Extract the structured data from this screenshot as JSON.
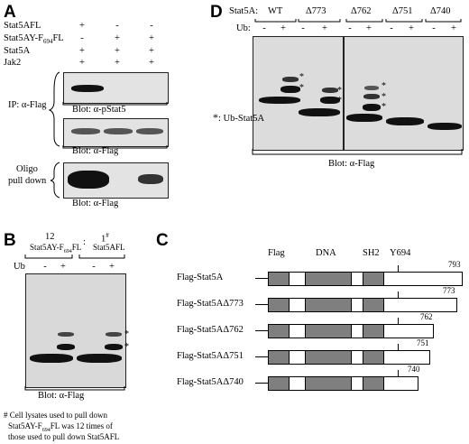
{
  "panelA": {
    "letter": "A",
    "rows": [
      {
        "label": "Stat5AFL",
        "marks": [
          "+",
          "-",
          "-"
        ]
      },
      {
        "label": "Stat5AY-F694FL",
        "marks": [
          "-",
          "+",
          "+"
        ]
      },
      {
        "label": "Stat5A",
        "marks": [
          "+",
          "+",
          "+"
        ]
      },
      {
        "label": "Jak2",
        "marks": [
          "+",
          "+",
          "+"
        ]
      }
    ],
    "ip_label": "IP: α-Flag",
    "blot1_caption": "Blot:  α-pStat5",
    "blot2_caption": "Blot:  α-Flag",
    "oligo_label_1": "Oligo",
    "oligo_label_2": "pull down",
    "blot3_caption": "Blot:  α-Flag"
  },
  "panelB": {
    "letter": "B",
    "group1_number": "12",
    "separator": ":",
    "group2_number": "1",
    "group2_sup": "#",
    "group1_name": "Stat5AY-F694FL",
    "group2_name": "Stat5AFL",
    "ub_label": "Ub",
    "ub_marks": [
      "-",
      "+",
      "-",
      "+"
    ],
    "blot_caption": "Blot:  α-Flag",
    "footnote_1": "# Cell lysates used to pull down",
    "footnote_2": "Stat5AY-F694FL was 12 times of",
    "footnote_3": "those used to pull down Stat5AFL"
  },
  "panelC": {
    "letter": "C",
    "domain_flag": "Flag",
    "domain_dna": "DNA",
    "domain_sh2": "SH2",
    "site_label": "Y694",
    "constructs": [
      {
        "name": "Flag-Stat5A",
        "length": "793"
      },
      {
        "name": "Flag-Stat5AΔ773",
        "length": "773"
      },
      {
        "name": "Flag-Stat5AΔ762",
        "length": "762"
      },
      {
        "name": "Flag-Stat5AΔ751",
        "length": "751"
      },
      {
        "name": "Flag-Stat5AΔ740",
        "length": "740"
      }
    ]
  },
  "panelD": {
    "letter": "D",
    "stat_label": "Stat5A:",
    "groups": [
      "WT",
      "Δ773",
      "Δ762",
      "Δ751",
      "Δ740"
    ],
    "ub_label": "Ub:",
    "ub_marks": [
      "-",
      "+",
      "-",
      "+",
      "-",
      "+",
      "-",
      "+",
      "-",
      "+"
    ],
    "legend_star": "*",
    "legend_text": ": Ub-Stat5A",
    "blot_caption": "Blot:  α-Flag",
    "star": "*"
  }
}
